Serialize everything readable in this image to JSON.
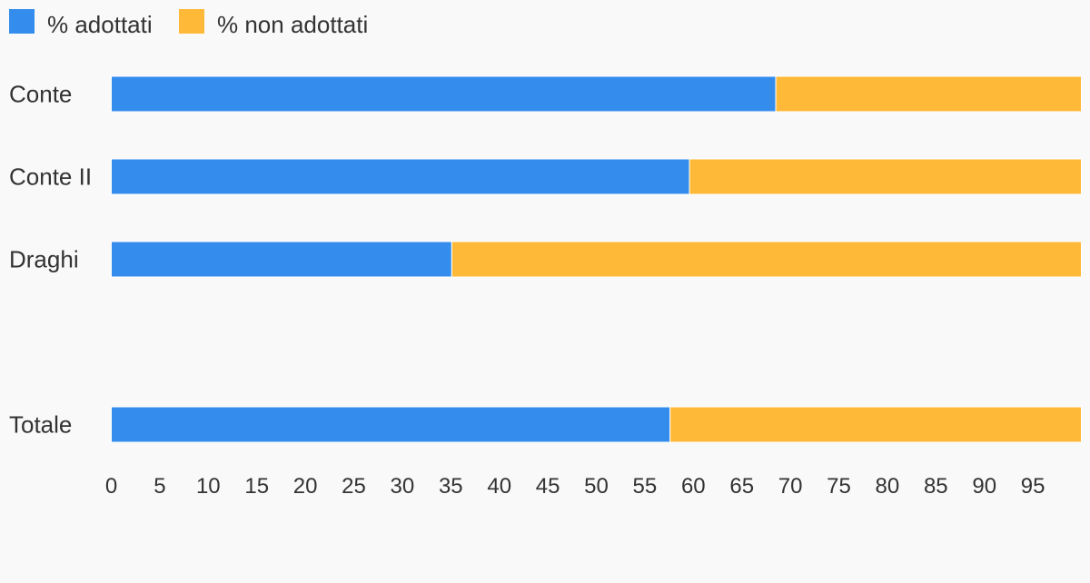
{
  "chart_data": {
    "type": "bar",
    "orientation": "horizontal",
    "stacked": true,
    "categories": [
      "Conte",
      "Conte II",
      "Draghi",
      "",
      "Totale"
    ],
    "series": [
      {
        "name": "% adottati",
        "color": "#348ded",
        "values": [
          68.5,
          59.6,
          35.1,
          null,
          57.6
        ]
      },
      {
        "name": "% non adottati",
        "color": "#ffb938",
        "values": [
          31.5,
          40.4,
          64.9,
          null,
          42.4
        ]
      }
    ],
    "x_ticks": [
      0,
      5,
      10,
      15,
      20,
      25,
      30,
      35,
      40,
      45,
      50,
      55,
      60,
      65,
      70,
      75,
      80,
      85,
      90,
      95
    ],
    "xlim": [
      0,
      100
    ],
    "grid": false,
    "legend_position": "top-left"
  },
  "colors": {
    "background": "#f9f9f9",
    "text": "#333333"
  }
}
